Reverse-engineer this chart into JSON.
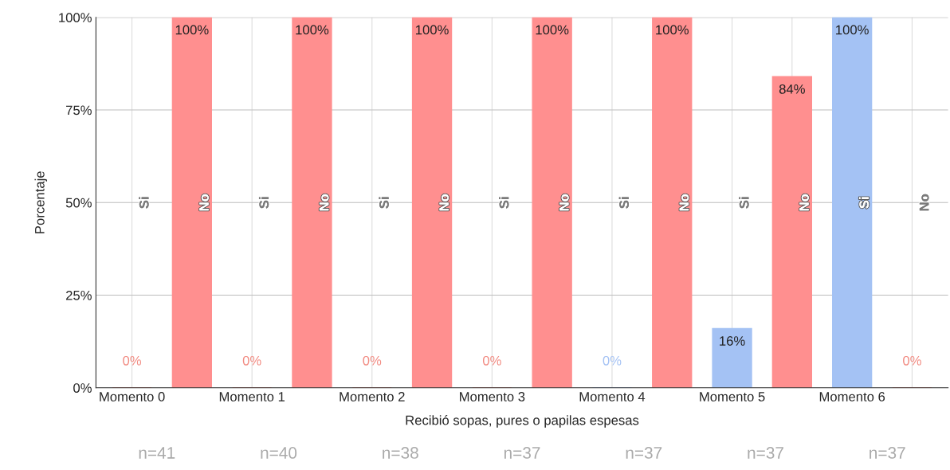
{
  "chart_data": {
    "type": "bar",
    "xlabel": "Recibió sopas, pures o papilas espesas",
    "ylabel": "Porcentaje",
    "categories": [
      "Momento 0",
      null,
      "Momento 1",
      null,
      "Momento 2",
      null,
      "Momento 3",
      null,
      "Momento 4",
      null,
      "Momento 5",
      null,
      "Momento 6",
      null
    ],
    "values": [
      0,
      100,
      0,
      100,
      0,
      100,
      0,
      100,
      0,
      100,
      16,
      84,
      100,
      0
    ],
    "colors": [
      "#f28b82",
      "#ff8f8f",
      "#f28b82",
      "#ff8f8f",
      "#f28b82",
      "#ff8f8f",
      "#f28b82",
      "#ff8f8f",
      "#a4c2f4",
      "#ff8f8f",
      "#a4c2f4",
      "#ff8f8f",
      "#a4c2f4",
      "#f28b82"
    ],
    "value_labels": [
      "0%",
      "100%",
      "0%",
      "100%",
      "0%",
      "100%",
      "0%",
      "100%",
      "0%",
      "100%",
      "16%",
      "84%",
      "100%",
      "0%"
    ],
    "ylim": [
      0,
      100
    ],
    "yticks": [
      {
        "value": 0,
        "label": "0%"
      },
      {
        "value": 25,
        "label": "25%"
      },
      {
        "value": 50,
        "label": "50%"
      },
      {
        "value": 75,
        "label": "75%"
      },
      {
        "value": 100,
        "label": "100%"
      }
    ],
    "grid": true,
    "annotations": [
      "Si",
      "No",
      "Si",
      "No",
      "Si",
      "No",
      "Si",
      "No",
      "Si",
      "No",
      "Si",
      "No",
      "Si",
      "No",
      "n=41",
      "n=40",
      "n=38",
      "n=37",
      "n=37",
      "n=37",
      "n=37"
    ]
  }
}
